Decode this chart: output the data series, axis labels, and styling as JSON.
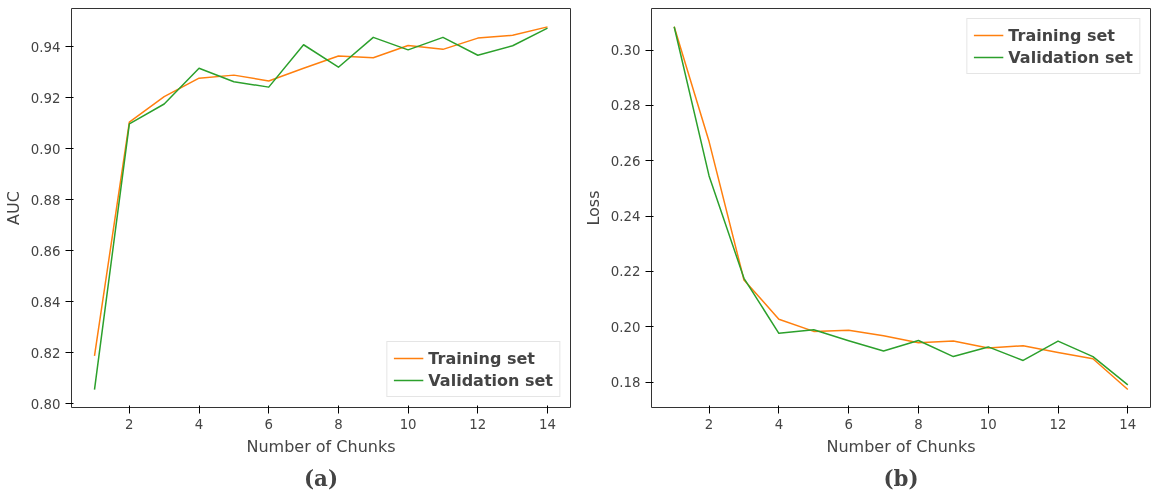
{
  "chart_data": [
    {
      "type": "line",
      "xlabel": "Number of Chunks",
      "ylabel": "AUC",
      "annotations": [
        "(a)"
      ],
      "x": [
        1,
        2,
        3,
        4,
        5,
        6,
        7,
        8,
        9,
        10,
        11,
        12,
        13,
        14
      ],
      "series": [
        {
          "name": "Training set",
          "color": "#ff7f0e",
          "values": [
            0.8188,
            0.9104,
            0.9204,
            0.9276,
            0.9288,
            0.9265,
            0.9315,
            0.9363,
            0.9356,
            0.9404,
            0.9389,
            0.9433,
            0.9444,
            0.9477
          ]
        },
        {
          "name": "Validation set",
          "color": "#2ca02c",
          "values": [
            0.8056,
            0.9097,
            0.9175,
            0.9315,
            0.9262,
            0.9241,
            0.9407,
            0.9319,
            0.9436,
            0.9387,
            0.9436,
            0.9366,
            0.9403,
            0.9472
          ]
        }
      ],
      "xlim": [
        0.34,
        14.66
      ],
      "xticks": [
        2,
        4,
        6,
        8,
        10,
        12,
        14
      ],
      "ylim": [
        0.7986,
        0.9549
      ],
      "yticks": [
        {
          "value": 0.8,
          "label": "0.80"
        },
        0.82,
        0.84,
        0.86,
        0.88,
        {
          "value": 0.9,
          "label": "0.90"
        },
        0.92,
        0.94
      ],
      "grid": false,
      "legend": "bottom right"
    },
    {
      "type": "line",
      "xlabel": "Number of Chunks",
      "ylabel": "Loss",
      "annotations": [
        "(b)"
      ],
      "x": [
        1,
        2,
        3,
        4,
        5,
        6,
        7,
        8,
        9,
        10,
        11,
        12,
        13,
        14
      ],
      "series": [
        {
          "name": "Training set",
          "color": "#ff7f0e",
          "values": [
            0.3084,
            0.2669,
            0.2169,
            0.2027,
            0.1983,
            0.1987,
            0.1967,
            0.1942,
            0.1948,
            0.1923,
            0.1931,
            0.1907,
            0.1884,
            0.1773
          ]
        },
        {
          "name": "Validation set",
          "color": "#2ca02c",
          "values": [
            0.3084,
            0.2545,
            0.2175,
            0.1976,
            0.1989,
            0.1949,
            0.1912,
            0.195,
            0.1892,
            0.1927,
            0.1878,
            0.1948,
            0.1892,
            0.179
          ]
        }
      ],
      "xlim": [
        0.35,
        14.65
      ],
      "xticks": [
        2,
        4,
        6,
        8,
        10,
        12,
        14
      ],
      "ylim": [
        0.1708,
        0.315
      ],
      "yticks": [
        0.18,
        {
          "value": 0.2,
          "label": "0.20"
        },
        0.22,
        0.24,
        0.26,
        0.28,
        {
          "value": 0.3,
          "label": "0.30"
        }
      ],
      "grid": false,
      "legend": "top right"
    }
  ]
}
